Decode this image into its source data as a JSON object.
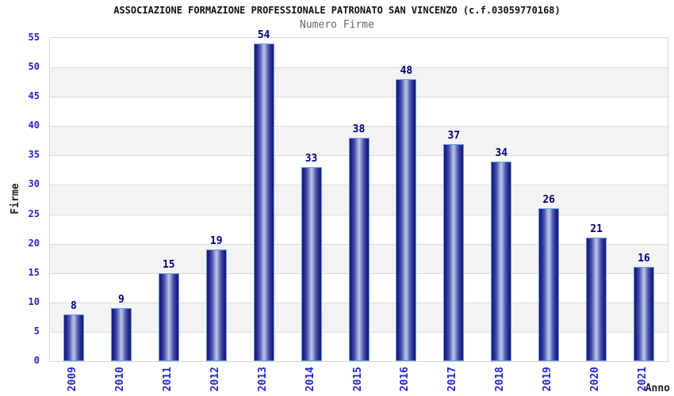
{
  "chart_data": {
    "type": "bar",
    "title": "ASSOCIAZIONE FORMAZIONE PROFESSIONALE PATRONATO SAN VINCENZO (c.f.03059770168)",
    "subtitle": "Numero Firme",
    "xlabel": "Anno",
    "ylabel": "Firme",
    "categories": [
      "2009",
      "2010",
      "2011",
      "2012",
      "2013",
      "2014",
      "2015",
      "2016",
      "2017",
      "2018",
      "2019",
      "2020",
      "2021"
    ],
    "values": [
      8,
      9,
      15,
      19,
      54,
      33,
      38,
      48,
      37,
      34,
      26,
      21,
      16
    ],
    "ylim": [
      0,
      55
    ],
    "yticks": [
      0,
      5,
      10,
      15,
      20,
      25,
      30,
      35,
      40,
      45,
      50,
      55
    ],
    "grid": "horizontal gridlines with alternating white/gray bands",
    "legend": "none",
    "bar_labels_shown": true,
    "colors": {
      "bar_edge": "#191978",
      "bar_mid": "#4a55aa",
      "bar_center": "#b2bce6",
      "bar_border": "#63a0e0",
      "tick_label": "#2424cc",
      "value_label": "#00007d",
      "band_gray": "#f3f3f3",
      "gridline": "#dcdcdc",
      "plot_border": "#d6d6d6",
      "title_color": "#111111",
      "subtitle_color": "#666666",
      "axis_title_color": "#222222"
    }
  }
}
